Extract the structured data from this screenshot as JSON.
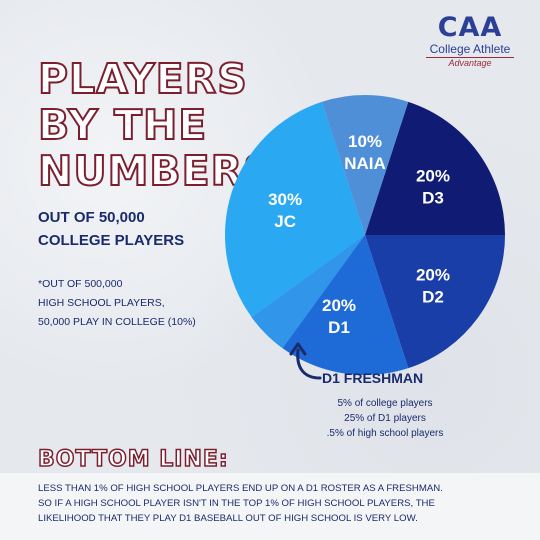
{
  "logo": {
    "mark": "CAA",
    "name": "College Athlete",
    "tagline": "Advantage"
  },
  "title_lines": [
    "PLAYERS",
    "BY THE",
    "NUMBERS"
  ],
  "subtitle_lines": [
    "OUT OF 50,000",
    "COLLEGE PLAYERS"
  ],
  "note_lines": [
    "*OUT OF 500,000",
    "HIGH SCHOOL PLAYERS,",
    "50,000 PLAY IN COLLEGE (10%)"
  ],
  "chart_data": {
    "type": "pie",
    "slices": [
      {
        "label": "D3",
        "value": 20,
        "display": "20%",
        "color": "#101b74"
      },
      {
        "label": "D2",
        "value": 20,
        "display": "20%",
        "color": "#1a3ea8"
      },
      {
        "label": "D1",
        "value": 20,
        "display": "20%",
        "color": "#1e6ad6",
        "highlight_label": "D1 FRESHMAN",
        "highlight_value": 5,
        "highlight_color": "#3195ea"
      },
      {
        "label": "JC",
        "value": 30,
        "display": "30%",
        "color": "#2aa8f2"
      },
      {
        "label": "NAIA",
        "value": 10,
        "display": "10%",
        "color": "#4f8fd8"
      }
    ]
  },
  "callout": {
    "title": "D1 FRESHMAN",
    "lines": [
      "5% of college players",
      "25% of D1 players",
      ".5% of high school players"
    ]
  },
  "bottom": {
    "title": "BOTTOM LINE:",
    "lines": [
      "LESS THAN 1% OF HIGH SCHOOL PLAYERS END UP ON A D1 ROSTER AS A FRESHMAN.",
      "SO IF A HIGH SCHOOL PLAYER ISN'T IN THE TOP 1% OF HIGH SCHOOL PLAYERS, THE",
      "LIKELIHOOD THAT THEY PLAY D1 BASEBALL OUT OF HIGH SCHOOL IS VERY LOW."
    ]
  }
}
